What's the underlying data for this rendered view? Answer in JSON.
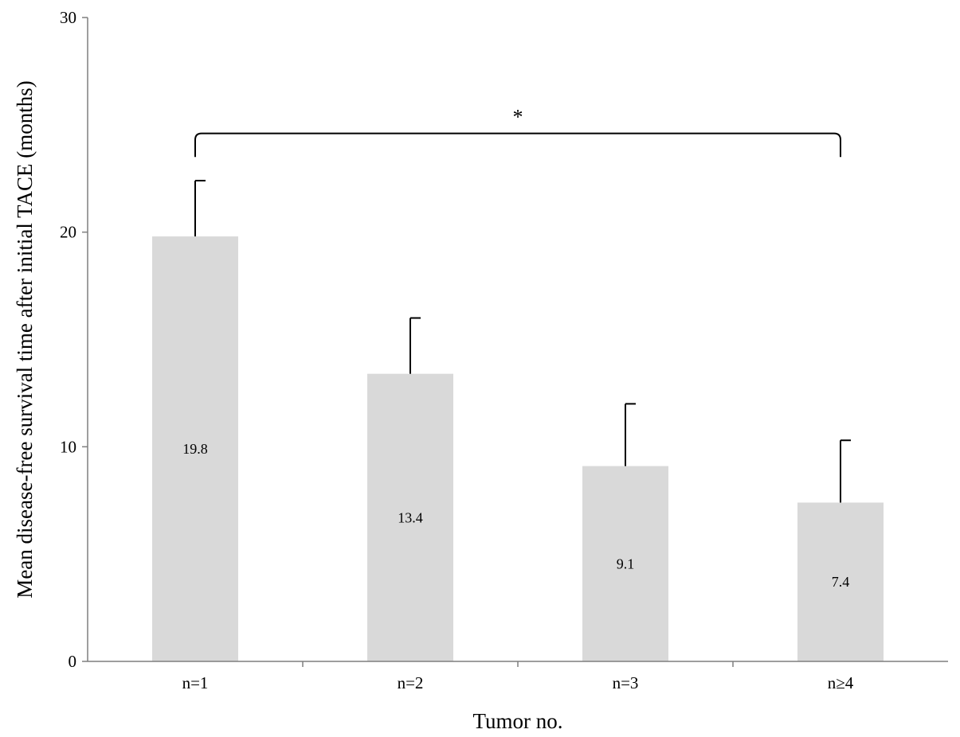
{
  "chart_data": {
    "type": "bar",
    "title": "",
    "xlabel": "Tumor no.",
    "ylabel": "Mean disease-free survival time after initial TACE (months)",
    "ylim": [
      0,
      30
    ],
    "yticks": [
      0,
      10,
      20,
      30
    ],
    "categories": [
      "n=1",
      "n=2",
      "n=3",
      "n≥4"
    ],
    "values": [
      19.8,
      13.4,
      9.1,
      7.4
    ],
    "data_labels": [
      "19.8",
      "13.4",
      "9.1",
      "7.4"
    ],
    "error_upper": [
      22.4,
      16.0,
      12.0,
      10.3
    ],
    "grid": false,
    "bar_color": "#d9d9d9",
    "annotations": [
      {
        "type": "significance-bracket",
        "from": "n=1",
        "to": "n≥4",
        "label": "*"
      }
    ]
  }
}
